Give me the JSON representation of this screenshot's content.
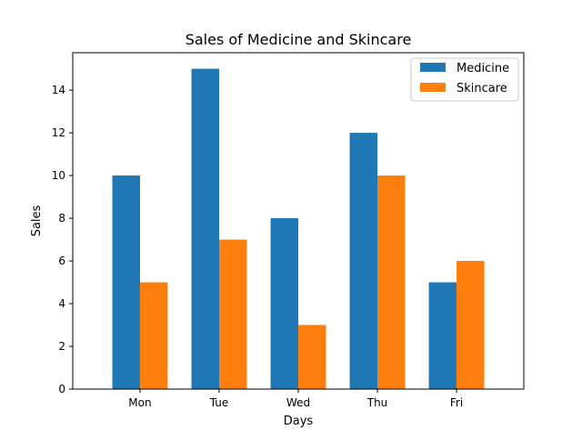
{
  "chart_data": {
    "type": "bar",
    "title": "Sales of Medicine and Skincare",
    "xlabel": "Days",
    "ylabel": "Sales",
    "categories": [
      "Mon",
      "Tue",
      "Wed",
      "Thu",
      "Fri"
    ],
    "series": [
      {
        "name": "Medicine",
        "values": [
          10,
          15,
          8,
          12,
          5
        ],
        "color": "#1f77b4"
      },
      {
        "name": "Skincare",
        "values": [
          5,
          7,
          3,
          10,
          6
        ],
        "color": "#ff7f0e"
      }
    ],
    "ylim": [
      0,
      15.75
    ],
    "yticks": [
      0,
      2,
      4,
      6,
      8,
      10,
      12,
      14
    ],
    "grid": false,
    "legend_position": "top-right"
  }
}
